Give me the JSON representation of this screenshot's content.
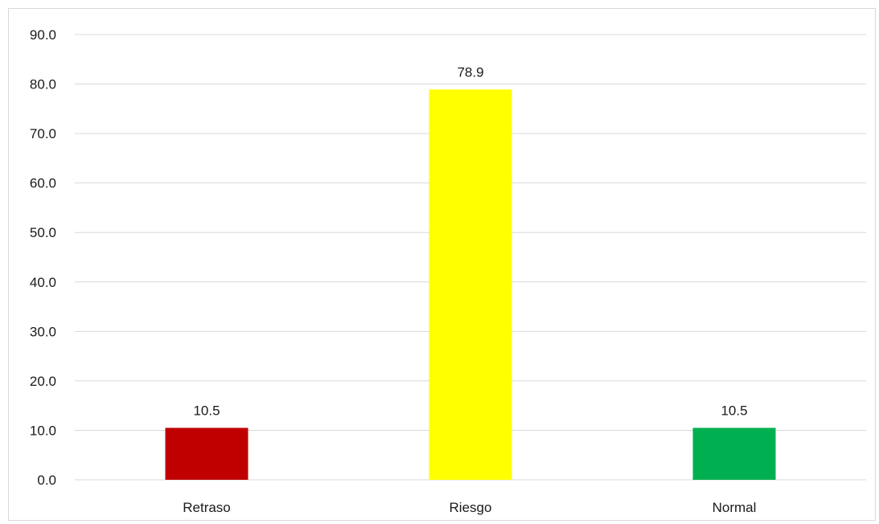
{
  "chart_data": {
    "type": "bar",
    "categories": [
      "Retraso",
      "Riesgo",
      "Normal"
    ],
    "values": [
      10.5,
      78.9,
      10.5
    ],
    "value_labels": [
      "10.5",
      "78.9",
      "10.5"
    ],
    "colors": [
      "#c00000",
      "#ffff00",
      "#00b050"
    ],
    "ylim": [
      0,
      90
    ],
    "yticks": [
      "0.0",
      "10.0",
      "20.0",
      "30.0",
      "40.0",
      "50.0",
      "60.0",
      "70.0",
      "80.0",
      "90.0"
    ],
    "grid": true,
    "legend": "none"
  }
}
